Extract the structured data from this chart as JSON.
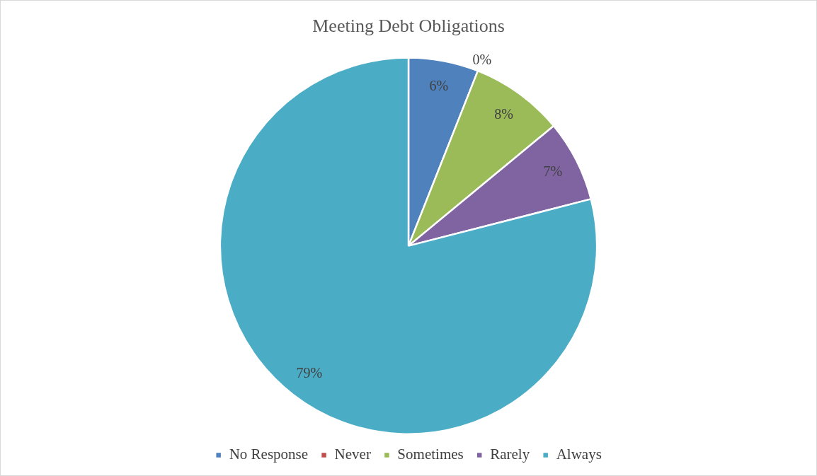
{
  "chart_data": {
    "type": "pie",
    "title": "Meeting Debt Obligations",
    "categories": [
      "No Response",
      "Never",
      "Sometimes",
      "Rarely",
      "Always"
    ],
    "values": [
      6,
      0,
      8,
      7,
      79
    ],
    "colors": [
      "#4f81bd",
      "#c0504d",
      "#9bbb59",
      "#8064a2",
      "#4bacc6"
    ],
    "value_labels": [
      "6%",
      "0%",
      "8%",
      "7%",
      "79%"
    ],
    "legend": "bottom"
  }
}
